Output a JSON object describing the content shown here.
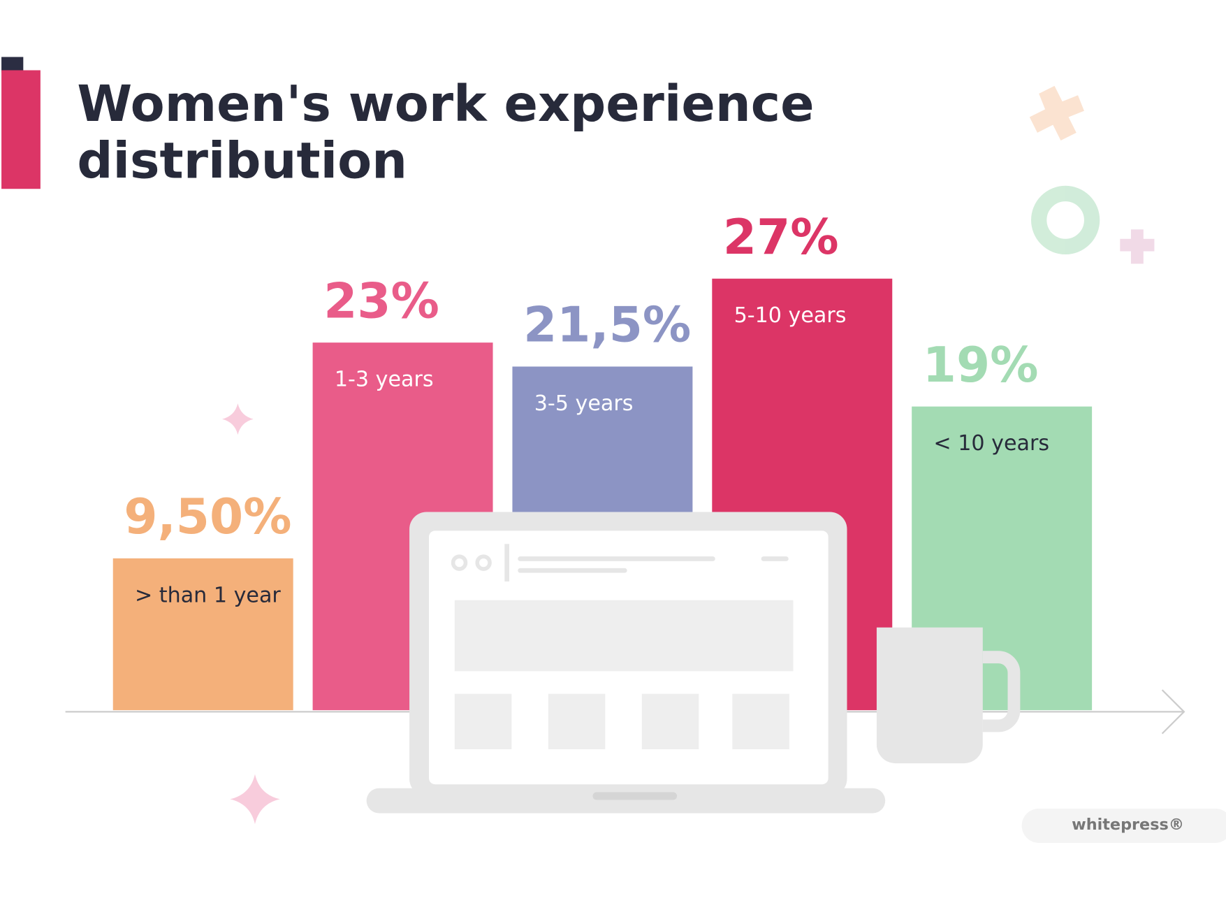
{
  "chart_data": {
    "type": "bar",
    "title_lines": [
      "Women's work experience",
      "distribution"
    ],
    "categories": [
      "> than 1 year",
      "1-3 years",
      "3-5 years",
      "5-10 years",
      "< 10 years"
    ],
    "values": [
      9.5,
      23,
      21.5,
      27,
      19
    ],
    "value_labels": [
      "9,50%",
      "23%",
      "21,5%",
      "27%",
      "19%"
    ],
    "colors": [
      "#f4b07a",
      "#e95c89",
      "#8c94c4",
      "#dc3566",
      "#a3dbb3"
    ],
    "watermark": "whitepress®"
  }
}
